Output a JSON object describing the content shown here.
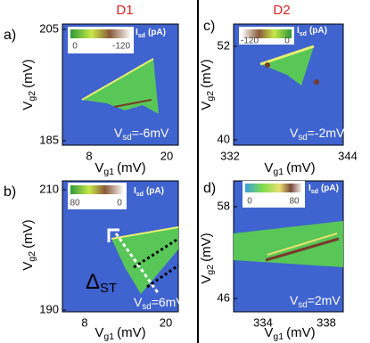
{
  "headers": [
    "D1",
    "D2"
  ],
  "panels": [
    {
      "label": "a)",
      "y_label": {
        "symbol": "V",
        "sub": "g2",
        "unit": "(mV)"
      },
      "x_label": {
        "symbol": "V",
        "sub": "g1",
        "unit": "(mV)"
      },
      "y_ticks": [
        "205",
        "185"
      ],
      "x_ticks": [
        "8",
        "20"
      ],
      "colorbar_ticks": [
        "0",
        "-120"
      ],
      "colorbar_label": {
        "symbol": "I",
        "sub": "sd",
        "unit": "(pA)"
      },
      "bias": {
        "symbol": "V",
        "sub": "sd",
        "value": "=-6mV"
      }
    },
    {
      "label": "c)",
      "y_label": {
        "symbol": "V",
        "sub": "g2",
        "unit": "(mV)"
      },
      "x_label": {
        "symbol": "V",
        "sub": "g1",
        "unit": "(mV)"
      },
      "y_ticks": [
        "52",
        "40"
      ],
      "x_ticks": [
        "332",
        "344"
      ],
      "colorbar_ticks": [
        "-120",
        "0"
      ],
      "colorbar_label": {
        "symbol": "I",
        "sub": "sd",
        "unit": "(pA)"
      },
      "bias": {
        "symbol": "V",
        "sub": "sd",
        "value": "=-2mV"
      }
    },
    {
      "label": "b)",
      "y_label": {
        "symbol": "V",
        "sub": "g2",
        "unit": "(mV)"
      },
      "x_label": {
        "symbol": "V",
        "sub": "g1",
        "unit": "(mV)"
      },
      "y_ticks": [
        "210",
        "190"
      ],
      "x_ticks": [
        "8",
        "20"
      ],
      "colorbar_ticks": [
        "80",
        "0"
      ],
      "colorbar_label": {
        "symbol": "I",
        "sub": "sd",
        "unit": "(pA)"
      },
      "bias": {
        "symbol": "V",
        "sub": "sd",
        "value": "=6mV"
      },
      "annotation": {
        "symbol": "Δ",
        "sub": "ST"
      }
    },
    {
      "label": "d)",
      "y_label": {
        "symbol": "V",
        "sub": "g2",
        "unit": "(mV)"
      },
      "x_label": {
        "symbol": "V",
        "sub": "g1",
        "unit": "(mV)"
      },
      "y_ticks": [
        "58",
        "46"
      ],
      "x_ticks": [
        "334",
        "338"
      ],
      "colorbar_ticks": [
        "0",
        "80"
      ],
      "colorbar_label": {
        "symbol": "I",
        "sub": "sd",
        "unit": "(pA)"
      },
      "bias": {
        "symbol": "V",
        "sub": "sd",
        "value": "=2mV"
      }
    }
  ]
}
